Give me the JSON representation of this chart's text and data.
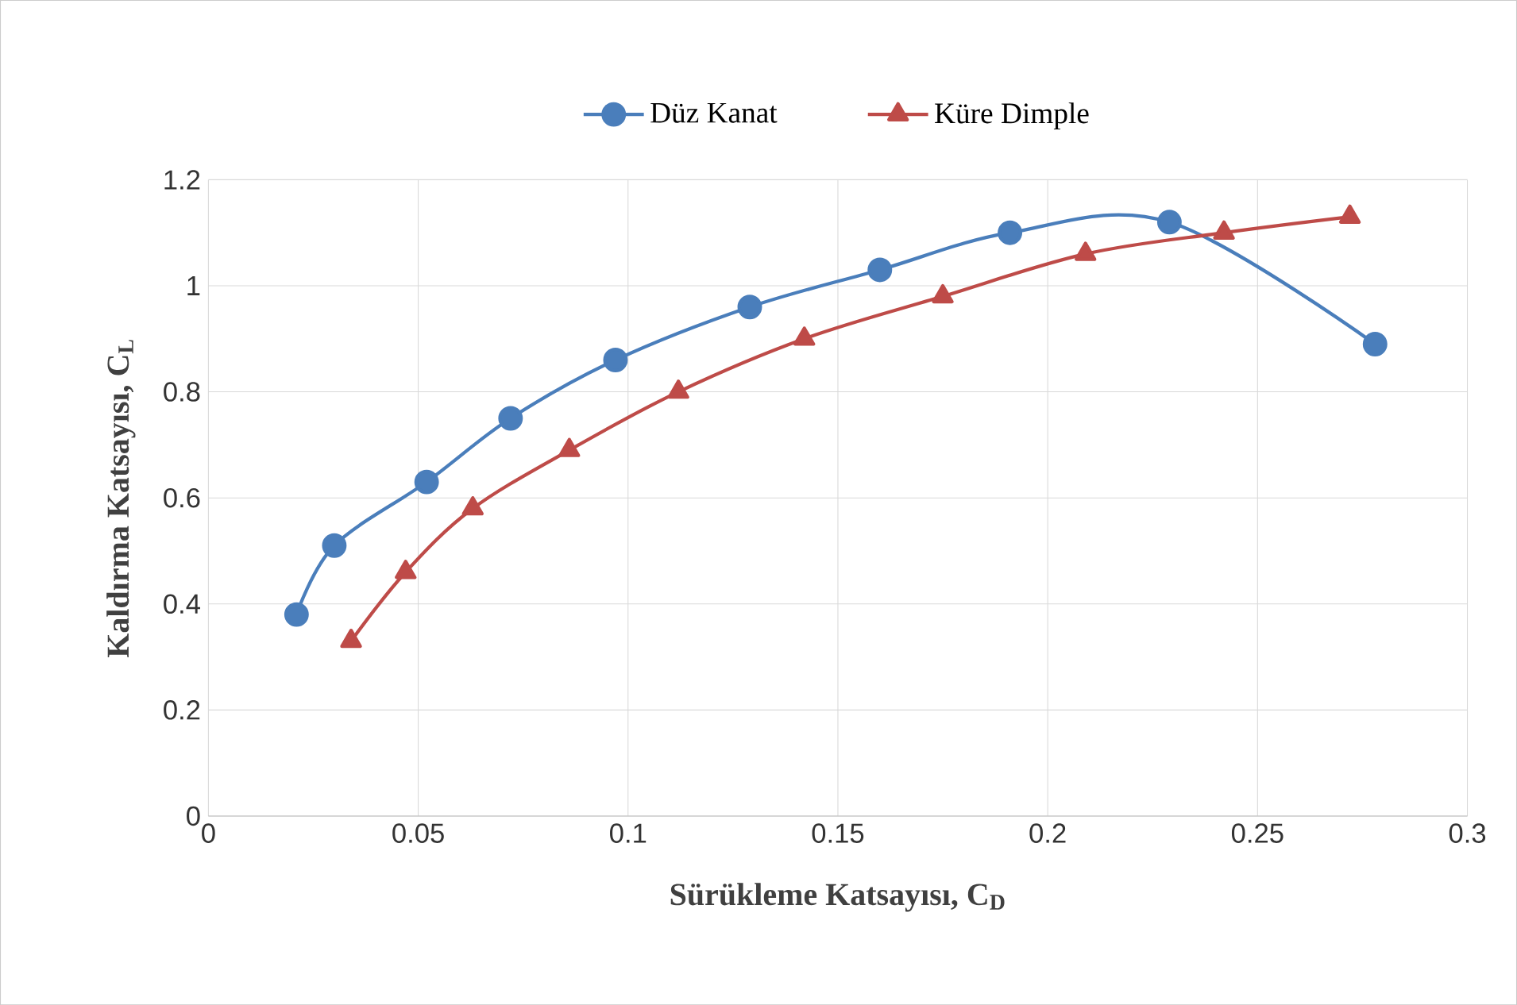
{
  "chart_data": {
    "type": "line",
    "xlabel": "Sürükleme Katsayısı, C$_{D}$",
    "ylabel": "Kaldırma Katsayısı, C$_{L}$",
    "xlim": [
      0,
      0.3
    ],
    "xticks": [
      0,
      0.05,
      0.1,
      0.15,
      0.2,
      0.25,
      0.3
    ],
    "ylim": [
      0,
      1.2
    ],
    "yticks": [
      0,
      0.2,
      0.4,
      0.6,
      0.8,
      1,
      1.2
    ],
    "grid": true,
    "legend": "top",
    "line_style": "solid",
    "series": [
      {
        "name": "Düz Kanat",
        "color": "#4a7ebb",
        "marker": "circle",
        "x": [
          0.021,
          0.03,
          0.052,
          0.072,
          0.097,
          0.129,
          0.16,
          0.191,
          0.229,
          0.278
        ],
        "values": [
          0.38,
          0.51,
          0.63,
          0.75,
          0.86,
          0.96,
          1.03,
          1.1,
          1.12,
          0.89
        ]
      },
      {
        "name": "Küre Dimple",
        "color": "#be4b48",
        "marker": "triangle",
        "x": [
          0.034,
          0.047,
          0.063,
          0.086,
          0.112,
          0.142,
          0.175,
          0.209,
          0.242,
          0.272
        ],
        "values": [
          0.33,
          0.46,
          0.58,
          0.69,
          0.8,
          0.9,
          0.98,
          1.06,
          1.1,
          1.13
        ]
      }
    ]
  }
}
